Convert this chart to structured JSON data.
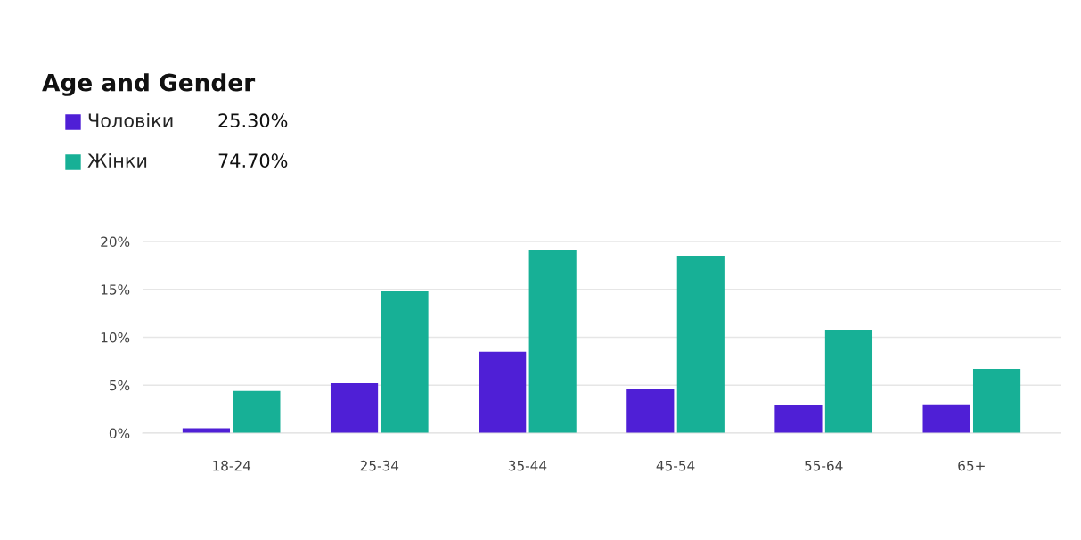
{
  "chart_data": {
    "type": "bar",
    "title": "Age and Gender",
    "categories": [
      "18-24",
      "25-34",
      "35-44",
      "45-54",
      "55-64",
      "65+"
    ],
    "series": [
      {
        "name": "Чоловіки",
        "color": "#4f1fd6",
        "values": [
          0.5,
          5.2,
          8.5,
          4.6,
          2.9,
          3.0
        ]
      },
      {
        "name": "Жінки",
        "color": "#17b096",
        "values": [
          4.4,
          14.8,
          19.1,
          18.5,
          10.8,
          6.7
        ]
      }
    ],
    "annotations": [
      "25.30%",
      "74.70%"
    ],
    "ylim": [
      0,
      20
    ],
    "yticks": [
      {
        "value": 0,
        "label": "0%"
      },
      {
        "value": 5,
        "label": "5%"
      },
      {
        "value": 10,
        "label": "10%"
      },
      {
        "value": 15,
        "label": "15%"
      },
      {
        "value": 20,
        "label": "20%"
      }
    ],
    "grid": "y",
    "legend": "top left"
  }
}
